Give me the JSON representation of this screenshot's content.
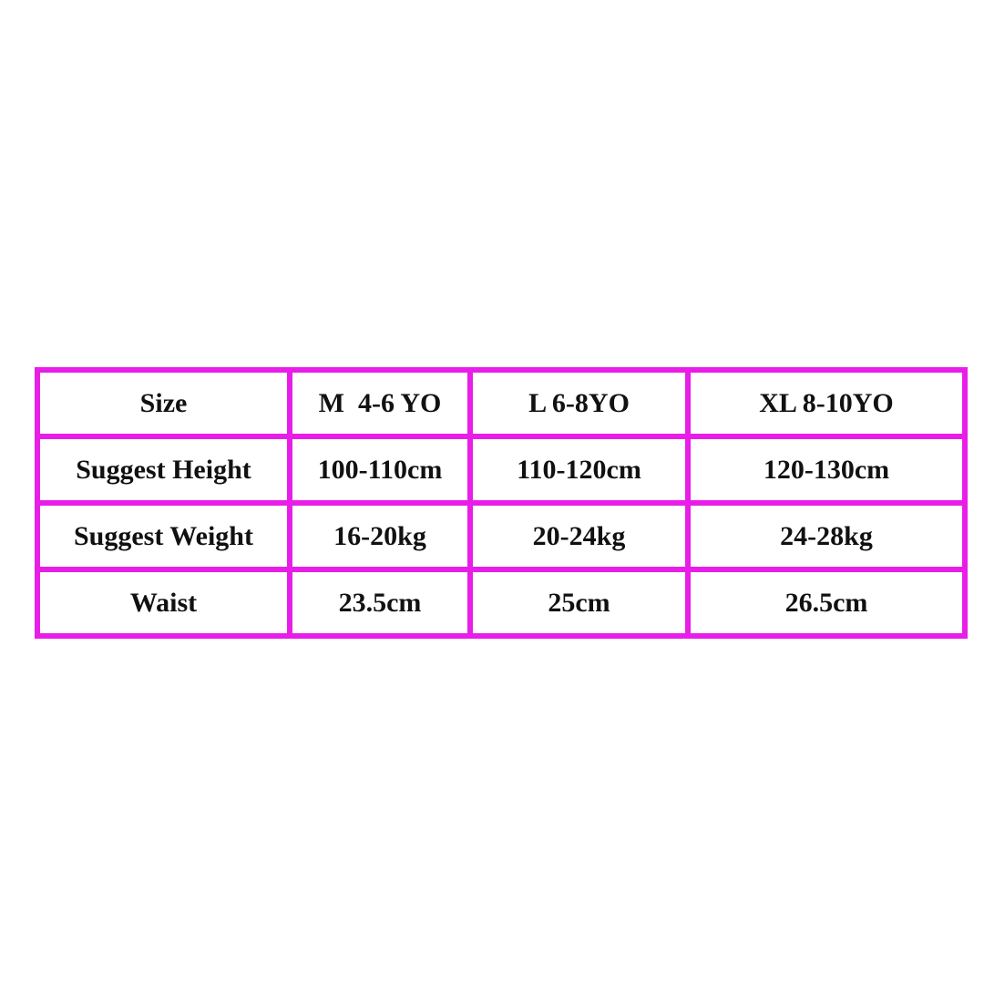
{
  "table": {
    "rows": [
      [
        "Size",
        "M  4-6 YO",
        "L 6-8YO",
        "XL 8-10YO"
      ],
      [
        "Suggest Height",
        "100-110cm",
        "110-120cm",
        "120-130cm"
      ],
      [
        "Suggest Weight",
        "16-20kg",
        "20-24kg",
        "24-28kg"
      ],
      [
        "Waist",
        "23.5cm",
        "25cm",
        "26.5cm"
      ]
    ]
  }
}
